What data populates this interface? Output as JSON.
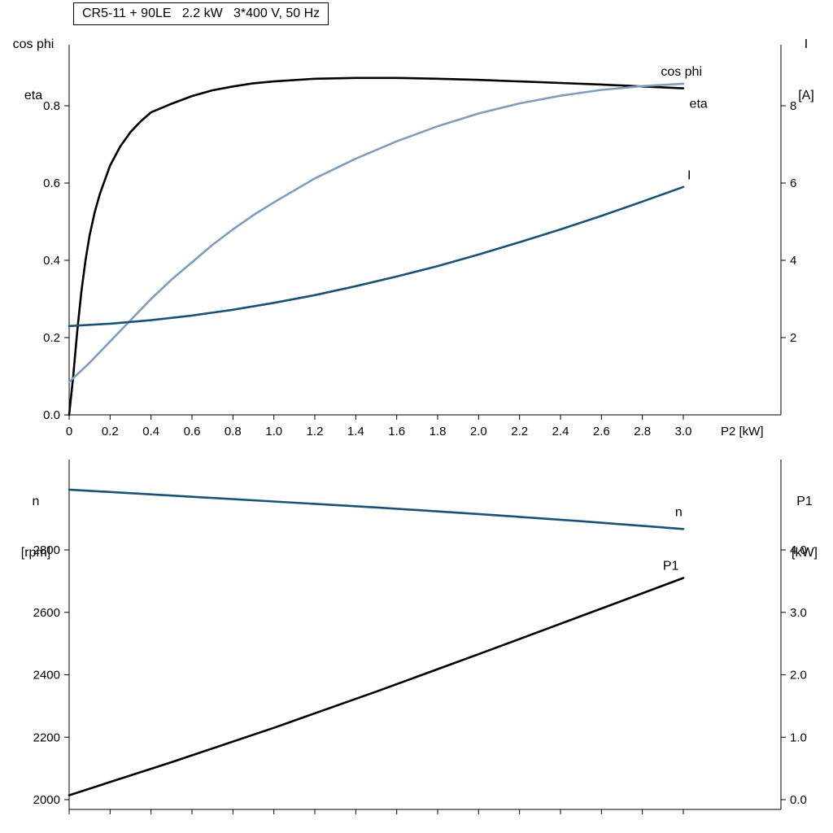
{
  "colors": {
    "black": "#000000",
    "light_blue": "#7e9dc3",
    "dark_blue": "#14537c"
  },
  "chart_data": [
    {
      "type": "line",
      "title": "CR5-11 + 90LE   2.2 kW   3*400 V, 50 Hz",
      "x_axis": {
        "label": "P2 [kW]",
        "min": 0,
        "max": 3.48,
        "tick_values": [
          0,
          0.2,
          0.4,
          0.6,
          0.8,
          1.0,
          1.2,
          1.4,
          1.6,
          1.8,
          2.0,
          2.2,
          2.4,
          2.6,
          2.8,
          3.0
        ],
        "tick_labels": [
          "0",
          "0.2",
          "0.4",
          "0.6",
          "0.8",
          "1.0",
          "1.2",
          "1.4",
          "1.6",
          "1.8",
          "2.0",
          "2.2",
          "2.4",
          "2.6",
          "2.8",
          "3.0"
        ],
        "show_tick_labels": true
      },
      "y_left": {
        "title_lines": [
          "cos phi",
          "eta"
        ],
        "min": 0,
        "max": 0.958,
        "tick_values": [
          0.0,
          0.2,
          0.4,
          0.6,
          0.8
        ],
        "tick_labels": [
          "0.0",
          "0.2",
          "0.4",
          "0.6",
          "0.8"
        ]
      },
      "y_right": {
        "title_lines": [
          "I",
          "[A]"
        ],
        "min": 0,
        "max": 9.58,
        "tick_values": [
          2,
          4,
          6,
          8
        ],
        "tick_labels": [
          "2",
          "4",
          "6",
          "8"
        ]
      },
      "series": [
        {
          "name": "eta",
          "axis": "left",
          "color": "#000000",
          "label_x": 3.03,
          "label_y": 0.795,
          "x": [
            0,
            0.02,
            0.04,
            0.06,
            0.08,
            0.1,
            0.125,
            0.15,
            0.2,
            0.25,
            0.3,
            0.35,
            0.4,
            0.5,
            0.6,
            0.7,
            0.8,
            0.9,
            1.0,
            1.2,
            1.4,
            1.6,
            1.8,
            2.0,
            2.2,
            2.4,
            2.6,
            2.8,
            3.0
          ],
          "y": [
            0,
            0.1,
            0.22,
            0.32,
            0.4,
            0.465,
            0.525,
            0.572,
            0.645,
            0.695,
            0.732,
            0.76,
            0.783,
            0.805,
            0.825,
            0.84,
            0.85,
            0.858,
            0.863,
            0.87,
            0.872,
            0.872,
            0.87,
            0.867,
            0.863,
            0.859,
            0.855,
            0.85,
            0.845
          ]
        },
        {
          "name": "cos phi",
          "axis": "left",
          "color": "#7e9dc3",
          "label_x": 2.89,
          "label_y": 0.878,
          "x": [
            0,
            0.1,
            0.2,
            0.3,
            0.4,
            0.5,
            0.6,
            0.7,
            0.8,
            0.9,
            1.0,
            1.2,
            1.4,
            1.6,
            1.8,
            2.0,
            2.2,
            2.4,
            2.6,
            2.8,
            3.0
          ],
          "y": [
            0.085,
            0.135,
            0.19,
            0.245,
            0.3,
            0.35,
            0.395,
            0.44,
            0.48,
            0.517,
            0.55,
            0.612,
            0.663,
            0.708,
            0.747,
            0.78,
            0.806,
            0.826,
            0.841,
            0.851,
            0.857
          ]
        },
        {
          "name": "I",
          "axis": "right",
          "color": "#14537c",
          "label_x": 3.02,
          "label_y": 6.1,
          "x": [
            0,
            0.2,
            0.4,
            0.6,
            0.8,
            1.0,
            1.2,
            1.4,
            1.6,
            1.8,
            2.0,
            2.2,
            2.4,
            2.6,
            2.8,
            3.0
          ],
          "y": [
            2.3,
            2.36,
            2.45,
            2.57,
            2.72,
            2.9,
            3.1,
            3.33,
            3.58,
            3.85,
            4.15,
            4.47,
            4.8,
            5.15,
            5.52,
            5.9
          ]
        }
      ]
    },
    {
      "type": "line",
      "title": "",
      "x_axis": {
        "label": "",
        "min": 0,
        "max": 3.48,
        "tick_values": [
          0,
          0.2,
          0.4,
          0.6,
          0.8,
          1.0,
          1.2,
          1.4,
          1.6,
          1.8,
          2.0,
          2.2,
          2.4,
          2.6,
          2.8,
          3.0
        ],
        "tick_labels": [],
        "show_tick_labels": false
      },
      "y_left": {
        "title_lines": [
          "n",
          "[rpm]"
        ],
        "min": 1969,
        "max": 3089,
        "tick_values": [
          2000,
          2200,
          2400,
          2600,
          2800
        ],
        "tick_labels": [
          "2000",
          "2200",
          "2400",
          "2600",
          "2800"
        ]
      },
      "y_right": {
        "title_lines": [
          "P1",
          "[kW]"
        ],
        "min": 0,
        "max": 5.45,
        "tick_values": [
          0.0,
          1.0,
          2.0,
          3.0,
          4.0
        ],
        "tick_labels": [
          "0.0",
          "1.0",
          "2.0",
          "3.0",
          "4.0"
        ]
      },
      "series": [
        {
          "name": "n",
          "axis": "left",
          "color": "#14537c",
          "label_x": 2.96,
          "label_y": 2908,
          "x": [
            0,
            0.5,
            1.0,
            1.5,
            2.0,
            2.5,
            3.0
          ],
          "y": [
            2993,
            2974,
            2955,
            2936,
            2915,
            2892,
            2867
          ]
        },
        {
          "name": "P1",
          "axis": "right",
          "color": "#000000",
          "label_x": 2.9,
          "label_y": 3.68,
          "x": [
            0,
            0.5,
            1.0,
            1.5,
            2.0,
            2.5,
            3.0
          ],
          "y": [
            0.07,
            0.6,
            1.15,
            1.73,
            2.33,
            2.94,
            3.55
          ]
        }
      ]
    }
  ]
}
